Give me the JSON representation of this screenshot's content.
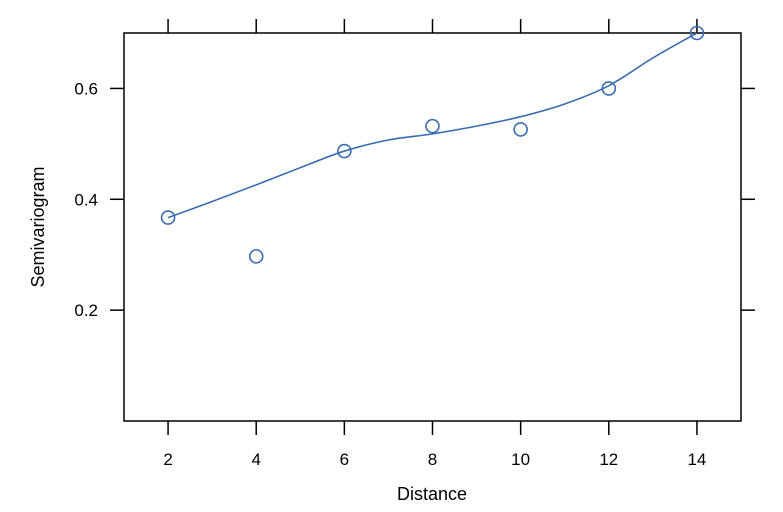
{
  "chart_data": {
    "type": "scatter",
    "xlabel": "Distance",
    "ylabel": "Semivariogram",
    "xlim": [
      1,
      15
    ],
    "ylim": [
      0,
      0.7
    ],
    "x_ticks": [
      2,
      4,
      6,
      8,
      10,
      12,
      14
    ],
    "x_tick_labels": [
      "2",
      "4",
      "6",
      "8",
      "10",
      "12",
      "14"
    ],
    "y_ticks": [
      0.2,
      0.4,
      0.6
    ],
    "y_tick_labels": [
      "0.2",
      "0.4",
      "0.6"
    ],
    "grid": false,
    "points": {
      "x": [
        2,
        4,
        6,
        8,
        10,
        12,
        14
      ],
      "y": [
        0.367,
        0.297,
        0.487,
        0.532,
        0.526,
        0.6,
        0.7
      ]
    },
    "smooth": {
      "x": [
        2,
        3,
        4,
        5,
        6,
        7,
        8,
        9,
        10,
        11,
        12,
        13,
        14
      ],
      "y": [
        0.367,
        0.396,
        0.426,
        0.457,
        0.487,
        0.507,
        0.518,
        0.532,
        0.549,
        0.572,
        0.605,
        0.655,
        0.7
      ]
    },
    "color": "#3a6cb0"
  }
}
